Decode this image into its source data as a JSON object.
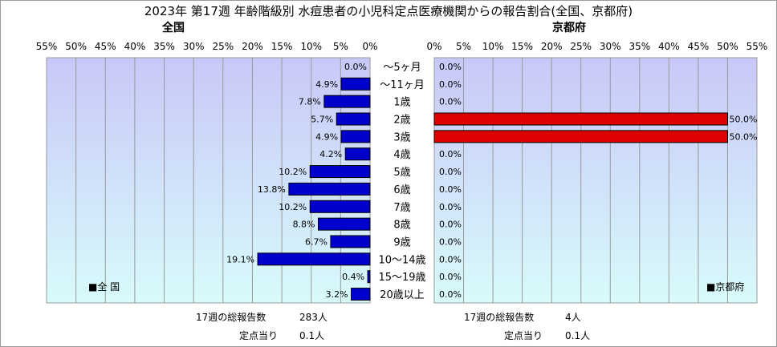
{
  "title": "2023年 第17週 年齢階級別 水痘患者の小児科定点医療機関からの報告割合(全国、京都府)",
  "colors": {
    "national_bar": "#0000cc",
    "kyoto_bar": "#dd0000",
    "plot_top": "#c8c8f8",
    "plot_bottom": "#d8fbfb",
    "grid": "#999999"
  },
  "chart_data": [
    {
      "type": "bar",
      "orientation": "horizontal",
      "direction": "right-to-left",
      "title": "全国",
      "legend": {
        "label": "■全 国",
        "placement": "bottom-left"
      },
      "categories": [
        "～5ヶ月",
        "～11ヶ月",
        "1歳",
        "2歳",
        "3歳",
        "4歳",
        "5歳",
        "6歳",
        "7歳",
        "8歳",
        "9歳",
        "10～14歳",
        "15～19歳",
        "20歳以上"
      ],
      "values": [
        0.0,
        4.9,
        7.8,
        5.7,
        4.9,
        4.2,
        10.2,
        13.8,
        10.2,
        8.8,
        6.7,
        19.1,
        0.4,
        3.2
      ],
      "xlim": [
        0,
        55
      ],
      "ticks": [
        "55%",
        "50%",
        "45%",
        "40%",
        "35%",
        "30%",
        "25%",
        "20%",
        "15%",
        "10%",
        "5%",
        "0%"
      ],
      "grid": true
    },
    {
      "type": "bar",
      "orientation": "horizontal",
      "direction": "left-to-right",
      "title": "京都府",
      "legend": {
        "label": "■京都府",
        "placement": "bottom-right"
      },
      "categories": [
        "～5ヶ月",
        "～11ヶ月",
        "1歳",
        "2歳",
        "3歳",
        "4歳",
        "5歳",
        "6歳",
        "7歳",
        "8歳",
        "9歳",
        "10～14歳",
        "15～19歳",
        "20歳以上"
      ],
      "values": [
        0.0,
        0.0,
        0.0,
        50.0,
        50.0,
        0.0,
        0.0,
        0.0,
        0.0,
        0.0,
        0.0,
        0.0,
        0.0,
        0.0
      ],
      "xlim": [
        0,
        55
      ],
      "ticks": [
        "0%",
        "5%",
        "10%",
        "15%",
        "20%",
        "25%",
        "30%",
        "35%",
        "40%",
        "45%",
        "50%",
        "55%"
      ],
      "grid": true
    }
  ],
  "footer": {
    "national_total_label": "17週の総報告数",
    "national_total": "283人",
    "national_per_label": "定点当り",
    "national_per": "0.1人",
    "kyoto_total_label": "17週の総報告数",
    "kyoto_total": "4人",
    "kyoto_per_label": "定点当り",
    "kyoto_per": "0.1人"
  }
}
